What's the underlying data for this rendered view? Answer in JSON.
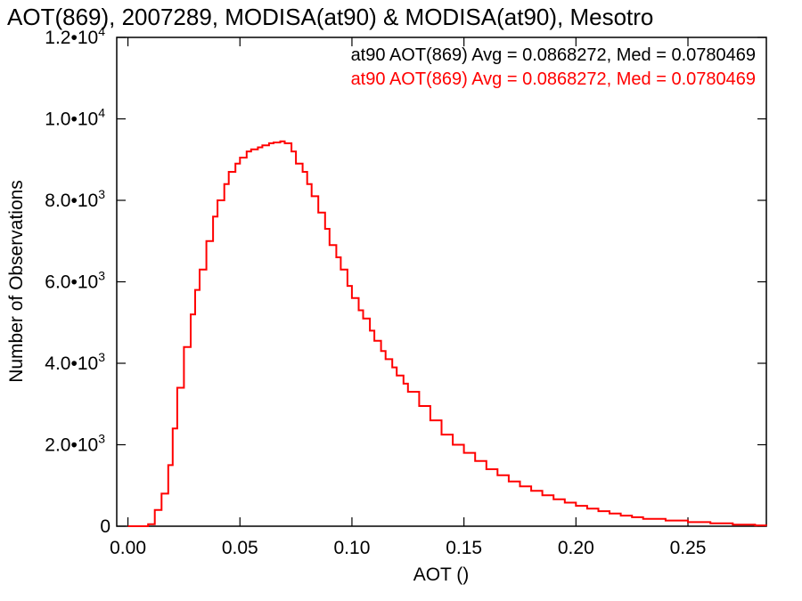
{
  "chart_data": {
    "type": "histogram",
    "title": "AOT(869), 2007289, MODISA(at90) & MODISA(at90), Mesotro",
    "xlabel": "AOT ()",
    "ylabel": "Number of Observations",
    "xlim": [
      -0.005,
      0.285
    ],
    "ylim": [
      0,
      12000
    ],
    "x_ticks": [
      0.0,
      0.05,
      0.1,
      0.15,
      0.2,
      0.25
    ],
    "x_tick_labels": [
      "0.00",
      "0.05",
      "0.10",
      "0.15",
      "0.20",
      "0.25"
    ],
    "y_ticks": [
      0,
      2000,
      4000,
      6000,
      8000,
      10000,
      12000
    ],
    "y_tick_labels": [
      {
        "mant": "0",
        "exp": ""
      },
      {
        "mant": "2.0•10",
        "exp": "3"
      },
      {
        "mant": "4.0•10",
        "exp": "3"
      },
      {
        "mant": "6.0•10",
        "exp": "3"
      },
      {
        "mant": "8.0•10",
        "exp": "3"
      },
      {
        "mant": "1.0•10",
        "exp": "4"
      },
      {
        "mant": "1.2•10",
        "exp": "4"
      }
    ],
    "annotations": [
      {
        "text": "at90 AOT(869) Avg = 0.0868272, Med = 0.0780469",
        "color": "#000000"
      },
      {
        "text": "at90 AOT(869) Avg = 0.0868272, Med = 0.0780469",
        "color": "#ff0000"
      }
    ],
    "grid": false,
    "series": [
      {
        "color": "#ff0000",
        "x": [
          0.0,
          0.005,
          0.009,
          0.012,
          0.015,
          0.018,
          0.02,
          0.022,
          0.025,
          0.028,
          0.03,
          0.032,
          0.035,
          0.038,
          0.04,
          0.043,
          0.045,
          0.048,
          0.05,
          0.053,
          0.055,
          0.058,
          0.06,
          0.063,
          0.065,
          0.068,
          0.07,
          0.073,
          0.075,
          0.078,
          0.08,
          0.082,
          0.085,
          0.088,
          0.09,
          0.093,
          0.095,
          0.098,
          0.1,
          0.103,
          0.105,
          0.108,
          0.11,
          0.113,
          0.115,
          0.118,
          0.12,
          0.123,
          0.125,
          0.13,
          0.135,
          0.14,
          0.145,
          0.15,
          0.155,
          0.16,
          0.165,
          0.17,
          0.175,
          0.18,
          0.185,
          0.19,
          0.195,
          0.2,
          0.205,
          0.21,
          0.215,
          0.22,
          0.225,
          0.23,
          0.24,
          0.25,
          0.26,
          0.27,
          0.28,
          0.285
        ],
        "y": [
          0,
          0,
          50,
          400,
          800,
          1500,
          2400,
          3400,
          4400,
          5200,
          5800,
          6300,
          7000,
          7600,
          8000,
          8400,
          8700,
          8900,
          9050,
          9200,
          9250,
          9300,
          9350,
          9400,
          9420,
          9450,
          9400,
          9200,
          8900,
          8700,
          8400,
          8100,
          7700,
          7300,
          6900,
          6600,
          6300,
          5900,
          5600,
          5300,
          5100,
          4800,
          4550,
          4300,
          4100,
          3900,
          3700,
          3500,
          3300,
          2950,
          2600,
          2250,
          2000,
          1800,
          1600,
          1400,
          1250,
          1100,
          980,
          870,
          760,
          660,
          580,
          500,
          430,
          370,
          310,
          260,
          220,
          180,
          140,
          100,
          70,
          40,
          20,
          15
        ]
      }
    ]
  }
}
